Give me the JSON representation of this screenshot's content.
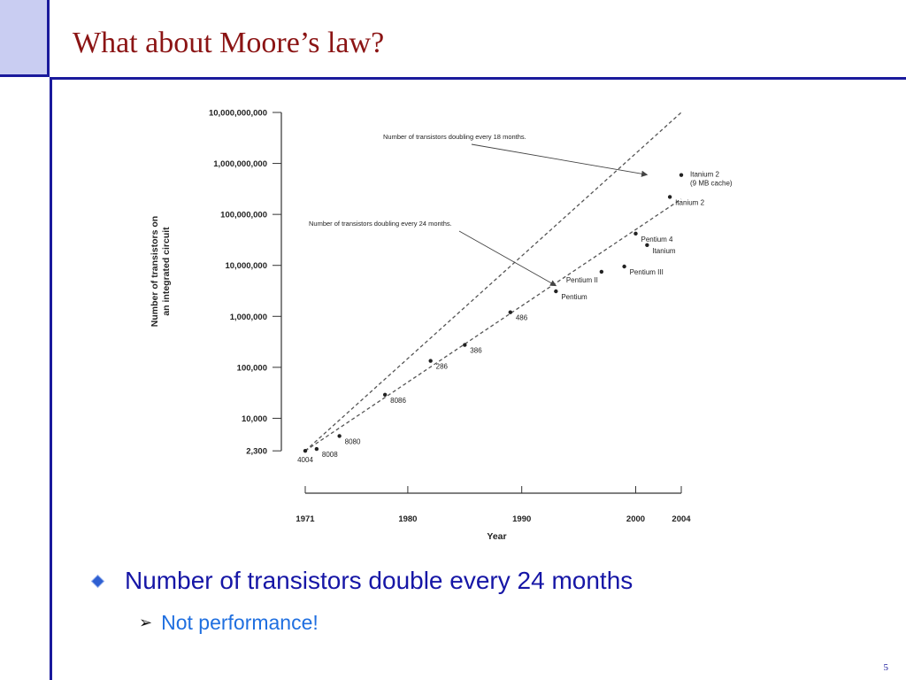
{
  "slide": {
    "title": "What about Moore’s law?",
    "bullets": [
      {
        "text": "Number of transistors double every 24 months",
        "sub": [
          "Not performance!"
        ]
      }
    ],
    "page_number": "5",
    "colors": {
      "title": "#8b1414",
      "frame": "#1a1a9c",
      "corner_fill": "#c9cdf2",
      "bullet_text": "#1616a6",
      "sub_bullet_text": "#1f6fe0"
    }
  },
  "chart_data": {
    "type": "scatter",
    "title": "",
    "xlabel": "Year",
    "ylabel": "Number of transistors on an integrated circuit",
    "yscale": "log",
    "xlim": [
      1971,
      2004
    ],
    "ylim": [
      1000,
      10000000000
    ],
    "xticks": [
      {
        "v": 1971,
        "label": "1971"
      },
      {
        "v": 1980,
        "label": "1980"
      },
      {
        "v": 1990,
        "label": "1990"
      },
      {
        "v": 2000,
        "label": "2000"
      },
      {
        "v": 2004,
        "label": "2004"
      }
    ],
    "yticks": [
      {
        "v": 2300,
        "label": "2,300"
      },
      {
        "v": 10000,
        "label": "10,000"
      },
      {
        "v": 100000,
        "label": "100,000"
      },
      {
        "v": 1000000,
        "label": "1,000,000"
      },
      {
        "v": 10000000,
        "label": "10,000,000"
      },
      {
        "v": 100000000,
        "label": "100,000,000"
      },
      {
        "v": 1000000000,
        "label": "1,000,000,000"
      },
      {
        "v": 10000000000,
        "label": "10,000,000,000"
      }
    ],
    "points": [
      {
        "label": "4004",
        "x": 1971,
        "y": 2300,
        "anchor": "below"
      },
      {
        "label": "8008",
        "x": 1972,
        "y": 2500,
        "anchor": "right"
      },
      {
        "label": "8080",
        "x": 1974,
        "y": 4500,
        "anchor": "right"
      },
      {
        "label": "8086",
        "x": 1978,
        "y": 29000,
        "anchor": "right"
      },
      {
        "label": "286",
        "x": 1982,
        "y": 134000,
        "anchor": "right"
      },
      {
        "label": "386",
        "x": 1985,
        "y": 275000,
        "anchor": "right"
      },
      {
        "label": "486",
        "x": 1989,
        "y": 1200000,
        "anchor": "right"
      },
      {
        "label": "Pentium",
        "x": 1993,
        "y": 3100000,
        "anchor": "right"
      },
      {
        "label": "Pentium II",
        "x": 1997,
        "y": 7500000,
        "anchor": "left"
      },
      {
        "label": "Pentium III",
        "x": 1999,
        "y": 9500000,
        "anchor": "right"
      },
      {
        "label": "Pentium 4",
        "x": 2000,
        "y": 42000000,
        "anchor": "right"
      },
      {
        "label": "Itanium",
        "x": 2001,
        "y": 25000000,
        "anchor": "right"
      },
      {
        "label": "Itanium 2",
        "x": 2003,
        "y": 220000000,
        "anchor": "right"
      },
      {
        "label": "Itanium 2 (9 MB cache)",
        "x": 2004,
        "y": 592000000,
        "anchor": "right"
      }
    ],
    "trend_lines": [
      {
        "label": "Number of transistors doubling every 18 months.",
        "from": [
          1971,
          2300
        ],
        "to": [
          2004,
          10000000000
        ],
        "arrow_to": [
          2001,
          600000000
        ]
      },
      {
        "label": "Number of transistors doubling every 24 months.",
        "from": [
          1971,
          2300
        ],
        "to": [
          2004,
          200000000
        ],
        "arrow_to": [
          1993,
          4000000
        ]
      }
    ],
    "grid": false,
    "legend": "none"
  }
}
